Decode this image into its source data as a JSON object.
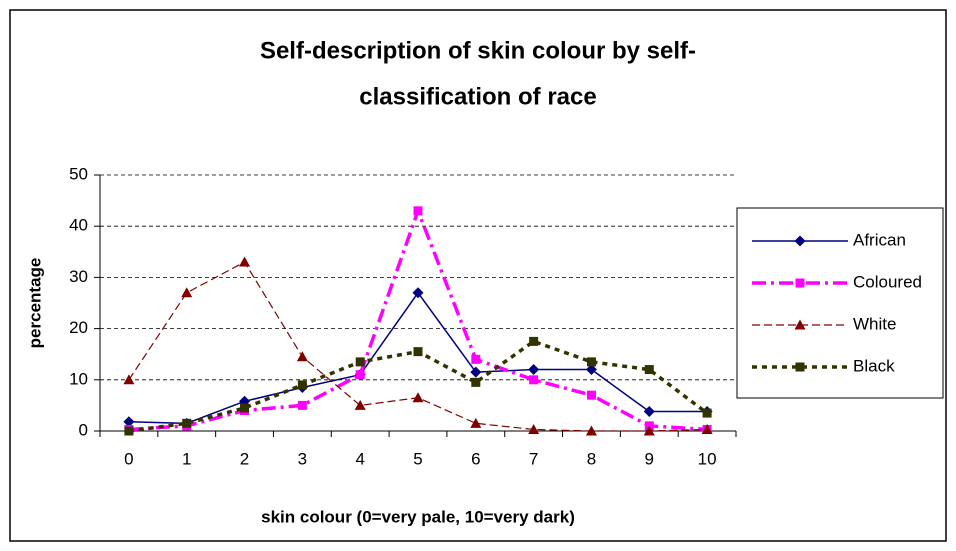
{
  "chart_data": {
    "type": "line",
    "title": [
      "Self-description of skin colour by self-",
      "classification of race"
    ],
    "x_label": "skin colour (0=very pale, 10=very dark)",
    "y_label": "percentage",
    "categories": [
      "0",
      "1",
      "2",
      "3",
      "4",
      "5",
      "6",
      "7",
      "8",
      "9",
      "10"
    ],
    "series": [
      {
        "name": "African",
        "color": "#000080",
        "line_style": "solid",
        "marker": "diamond",
        "values": [
          1.8,
          1.5,
          5.8,
          8.5,
          11,
          27,
          11.5,
          12,
          12,
          3.8,
          3.8
        ]
      },
      {
        "name": "Coloured",
        "color": "#ff00ff",
        "line_style": "dashdot",
        "marker": "square",
        "values": [
          0.3,
          1,
          4,
          5,
          11,
          43,
          14,
          10,
          7,
          1,
          0.3
        ]
      },
      {
        "name": "White",
        "color": "#800000",
        "line_style": "dashed",
        "marker": "triangle",
        "values": [
          10,
          27,
          33,
          14.5,
          5,
          6.5,
          1.5,
          0.3,
          0,
          0,
          0.3
        ]
      },
      {
        "name": "Black",
        "color": "#333300",
        "line_style": "dotted",
        "marker": "square",
        "values": [
          0,
          1.5,
          4.5,
          9,
          13.5,
          15.5,
          9.5,
          17.5,
          13.5,
          12,
          3.5
        ]
      }
    ],
    "ylim": [
      0,
      50
    ],
    "yticks": [
      0,
      10,
      20,
      30,
      40,
      50
    ],
    "grid": true,
    "legend": "right"
  }
}
